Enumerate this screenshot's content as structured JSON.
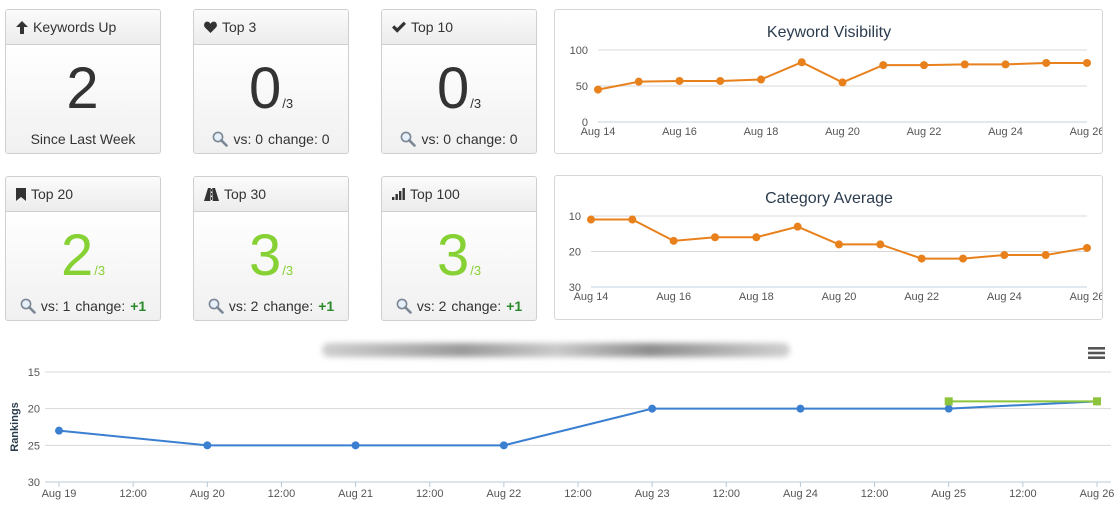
{
  "cards": [
    {
      "title": "Keywords Up",
      "icon": "arrow-up-icon",
      "value": "2",
      "denom": "",
      "footer": "Since Last Week",
      "vs": "",
      "change": "",
      "plus": "",
      "color": "#333333"
    },
    {
      "title": "Top 3",
      "icon": "heart-icon",
      "value": "0",
      "denom": "/3",
      "footer": "",
      "vs": "vs: 0",
      "change": "change: 0",
      "plus": "",
      "color": "#333333"
    },
    {
      "title": "Top 10",
      "icon": "checkmark-icon",
      "value": "0",
      "denom": "/3",
      "footer": "",
      "vs": "vs: 0",
      "change": "change: 0",
      "plus": "",
      "color": "#333333"
    },
    {
      "title": "Top 20",
      "icon": "bookmark-icon",
      "value": "2",
      "denom": "/3",
      "footer": "",
      "vs": "vs: 1",
      "change": "change:",
      "plus": "+1",
      "color": "#86d134"
    },
    {
      "title": "Top 30",
      "icon": "road-icon",
      "value": "3",
      "denom": "/3",
      "footer": "",
      "vs": "vs: 2",
      "change": "change:",
      "plus": "+1",
      "color": "#86d134"
    },
    {
      "title": "Top 100",
      "icon": "signal-bars-icon",
      "value": "3",
      "denom": "/3",
      "footer": "",
      "vs": "vs: 2",
      "change": "change:",
      "plus": "+1",
      "color": "#86d134"
    }
  ],
  "chart_data": [
    {
      "type": "line",
      "title": "Keyword Visibility",
      "x": [
        "Aug 14",
        "Aug 15",
        "Aug 16",
        "Aug 17",
        "Aug 18",
        "Aug 19",
        "Aug 20",
        "Aug 21",
        "Aug 22",
        "Aug 23",
        "Aug 24",
        "Aug 25",
        "Aug 26"
      ],
      "xticks": [
        "Aug 14",
        "Aug 16",
        "Aug 18",
        "Aug 20",
        "Aug 22",
        "Aug 24",
        "Aug 26"
      ],
      "yticks": [
        100,
        50,
        0
      ],
      "ylim": [
        0,
        100
      ],
      "reversed": false,
      "series": [
        {
          "values": [
            45,
            56,
            57,
            57,
            59,
            83,
            55,
            79,
            79,
            80,
            80,
            82,
            82
          ],
          "color": "#e8801c"
        }
      ]
    },
    {
      "type": "line",
      "title": "Category Average",
      "x": [
        "Aug 14",
        "Aug 15",
        "Aug 16",
        "Aug 17",
        "Aug 18",
        "Aug 19",
        "Aug 20",
        "Aug 21",
        "Aug 22",
        "Aug 23",
        "Aug 24",
        "Aug 25",
        "Aug 26"
      ],
      "xticks": [
        "Aug 14",
        "Aug 16",
        "Aug 18",
        "Aug 20",
        "Aug 22",
        "Aug 24",
        "Aug 26"
      ],
      "yticks": [
        10,
        20,
        30
      ],
      "ylim": [
        10,
        30
      ],
      "reversed": true,
      "series": [
        {
          "values": [
            11,
            11,
            17,
            16,
            16,
            13,
            18,
            18,
            22,
            22,
            21,
            21,
            19
          ],
          "color": "#e8801c"
        }
      ]
    },
    {
      "type": "line",
      "title": "",
      "ylabel": "Rankings",
      "xticks": [
        "Aug 19",
        "12:00",
        "Aug 20",
        "12:00",
        "Aug 21",
        "12:00",
        "Aug 22",
        "12:00",
        "Aug 23",
        "12:00",
        "Aug 24",
        "12:00",
        "Aug 25",
        "12:00",
        "Aug 26"
      ],
      "yticks": [
        15,
        20,
        25,
        30
      ],
      "ylim": [
        15,
        30
      ],
      "reversed": true,
      "series": [
        {
          "x": [
            "Aug 19",
            "Aug 20",
            "Aug 21",
            "Aug 22",
            "Aug 23",
            "Aug 24",
            "Aug 25",
            "Aug 26"
          ],
          "values": [
            23,
            25,
            25,
            25,
            20,
            20,
            20,
            19
          ],
          "color": "#3a7fd0",
          "marker": "circle"
        },
        {
          "x": [
            "Aug 25",
            "Aug 26"
          ],
          "values": [
            19,
            19
          ],
          "color": "#8cc43c",
          "marker": "square"
        }
      ]
    }
  ]
}
